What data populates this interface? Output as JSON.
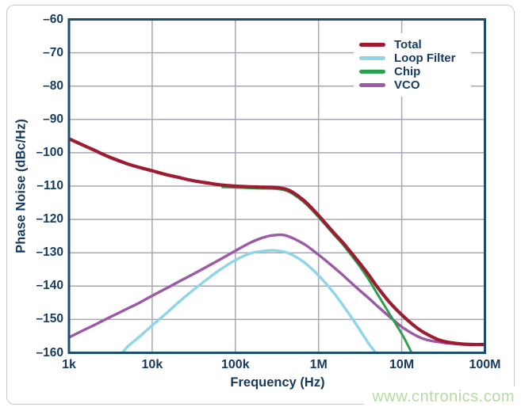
{
  "figure": {
    "background": "#ffffff",
    "frame_color": "#cacaca"
  },
  "watermark": {
    "text": "www.cntronics.com",
    "color": "#b5dba2"
  },
  "chart_data": {
    "type": "line",
    "title": "",
    "xlabel": "Frequency (Hz)",
    "ylabel": "Phase Noise (dBc/Hz)",
    "x_scale": "log",
    "xlim": [
      1000,
      100000000
    ],
    "ylim": [
      -160,
      -60
    ],
    "grid": true,
    "legend_position": "top-right",
    "colors": {
      "axis": "#1d4e6e",
      "grid": "#a7a8b6",
      "text": "#16395e"
    },
    "x_ticks": [
      {
        "value": 1000,
        "label": "1k"
      },
      {
        "value": 10000,
        "label": "10k"
      },
      {
        "value": 100000,
        "label": "100k"
      },
      {
        "value": 1000000,
        "label": "1M"
      },
      {
        "value": 10000000,
        "label": "10M"
      },
      {
        "value": 100000000,
        "label": "100M"
      }
    ],
    "y_ticks": [
      {
        "value": -60,
        "label": "–60"
      },
      {
        "value": -70,
        "label": "–70"
      },
      {
        "value": -80,
        "label": "–80"
      },
      {
        "value": -90,
        "label": "–90"
      },
      {
        "value": -100,
        "label": "–100"
      },
      {
        "value": -110,
        "label": "–110"
      },
      {
        "value": -120,
        "label": "–120"
      },
      {
        "value": -130,
        "label": "–130"
      },
      {
        "value": -140,
        "label": "–140"
      },
      {
        "value": -150,
        "label": "–150"
      },
      {
        "value": -160,
        "label": "–160"
      }
    ],
    "series": [
      {
        "name": "Total",
        "color": "#9e1c31",
        "width": 4.2,
        "points": [
          [
            1000,
            -95.8
          ],
          [
            1500,
            -97.8
          ],
          [
            2000,
            -99.2
          ],
          [
            3000,
            -101.2
          ],
          [
            5000,
            -103.3
          ],
          [
            7000,
            -104.4
          ],
          [
            10000,
            -105.4
          ],
          [
            15000,
            -106.6
          ],
          [
            20000,
            -107.3
          ],
          [
            30000,
            -108.3
          ],
          [
            50000,
            -109.2
          ],
          [
            70000,
            -109.7
          ],
          [
            100000,
            -110.0
          ],
          [
            150000,
            -110.2
          ],
          [
            200000,
            -110.3
          ],
          [
            300000,
            -110.4
          ],
          [
            400000,
            -110.9
          ],
          [
            500000,
            -112.0
          ],
          [
            700000,
            -114.8
          ],
          [
            1000000,
            -118.8
          ],
          [
            1500000,
            -123.8
          ],
          [
            2000000,
            -127.2
          ],
          [
            3000000,
            -132.6
          ],
          [
            4000000,
            -136.6
          ],
          [
            5000000,
            -140.0
          ],
          [
            7000000,
            -144.6
          ],
          [
            10000000,
            -148.6
          ],
          [
            15000000,
            -152.4
          ],
          [
            20000000,
            -154.4
          ],
          [
            30000000,
            -156.4
          ],
          [
            50000000,
            -157.3
          ],
          [
            70000000,
            -157.5
          ],
          [
            100000000,
            -157.5
          ]
        ]
      },
      {
        "name": "Loop Filter",
        "color": "#8dd5e7",
        "width": 3.4,
        "points": [
          [
            4200,
            -160.8
          ],
          [
            5000,
            -158.3
          ],
          [
            7000,
            -155.2
          ],
          [
            10000,
            -151.8
          ],
          [
            15000,
            -148.0
          ],
          [
            20000,
            -145.2
          ],
          [
            30000,
            -141.5
          ],
          [
            50000,
            -137.2
          ],
          [
            70000,
            -134.6
          ],
          [
            100000,
            -132.2
          ],
          [
            150000,
            -130.2
          ],
          [
            200000,
            -129.6
          ],
          [
            250000,
            -129.3
          ],
          [
            300000,
            -129.3
          ],
          [
            400000,
            -129.8
          ],
          [
            500000,
            -130.8
          ],
          [
            700000,
            -133.2
          ],
          [
            1000000,
            -136.8
          ],
          [
            1500000,
            -141.8
          ],
          [
            2000000,
            -146.0
          ],
          [
            3000000,
            -152.4
          ],
          [
            4000000,
            -157.2
          ],
          [
            5000000,
            -160.4
          ],
          [
            5600000,
            -162.5
          ]
        ]
      },
      {
        "name": "Chip",
        "color": "#2aa14f",
        "width": 3.0,
        "points": [
          [
            70000,
            -110.3
          ],
          [
            100000,
            -110.4
          ],
          [
            150000,
            -110.6
          ],
          [
            200000,
            -110.7
          ],
          [
            300000,
            -110.8
          ],
          [
            400000,
            -111.3
          ],
          [
            500000,
            -112.5
          ],
          [
            700000,
            -115.3
          ],
          [
            1000000,
            -119.3
          ],
          [
            1500000,
            -124.3
          ],
          [
            2000000,
            -127.8
          ],
          [
            3000000,
            -133.5
          ],
          [
            4000000,
            -138.0
          ],
          [
            5000000,
            -142.0
          ],
          [
            7000000,
            -148.0
          ],
          [
            10000000,
            -154.3
          ],
          [
            12000000,
            -158.0
          ],
          [
            14000000,
            -161.5
          ]
        ]
      },
      {
        "name": "VCO",
        "color": "#9c59a6",
        "width": 3.4,
        "points": [
          [
            1000,
            -155.4
          ],
          [
            1500,
            -153.2
          ],
          [
            2000,
            -151.7
          ],
          [
            3000,
            -149.5
          ],
          [
            5000,
            -146.8
          ],
          [
            7000,
            -145.0
          ],
          [
            10000,
            -142.9
          ],
          [
            15000,
            -140.6
          ],
          [
            20000,
            -138.9
          ],
          [
            30000,
            -136.6
          ],
          [
            50000,
            -133.6
          ],
          [
            70000,
            -131.6
          ],
          [
            100000,
            -129.4
          ],
          [
            150000,
            -127.0
          ],
          [
            200000,
            -125.7
          ],
          [
            250000,
            -125.0
          ],
          [
            300000,
            -124.7
          ],
          [
            350000,
            -124.6
          ],
          [
            400000,
            -124.8
          ],
          [
            500000,
            -125.7
          ],
          [
            700000,
            -127.7
          ],
          [
            1000000,
            -130.6
          ],
          [
            1500000,
            -134.2
          ],
          [
            2000000,
            -136.9
          ],
          [
            3000000,
            -140.9
          ],
          [
            4000000,
            -143.6
          ],
          [
            5000000,
            -145.8
          ],
          [
            7000000,
            -149.0
          ],
          [
            10000000,
            -152.2
          ],
          [
            15000000,
            -154.9
          ],
          [
            20000000,
            -156.1
          ],
          [
            30000000,
            -156.9
          ],
          [
            50000000,
            -157.4
          ],
          [
            100000000,
            -157.6
          ]
        ]
      }
    ]
  }
}
